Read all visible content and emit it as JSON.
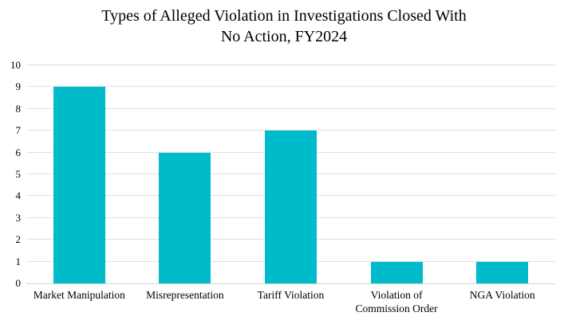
{
  "chart_data": {
    "type": "bar",
    "title": "Types of Alleged Violation in Investigations Closed With No Action, FY2024",
    "title_lines": [
      "Types of Alleged Violation in Investigations Closed With",
      "No Action, FY2024"
    ],
    "categories": [
      "Market Manipulation",
      "Misrepresentation",
      "Tariff Violation",
      "Violation of Commission Order",
      "NGA Violation"
    ],
    "values": [
      9,
      6,
      7,
      1,
      1
    ],
    "xlabel": "",
    "ylabel": "",
    "ylim": [
      0,
      10
    ],
    "yticks": [
      0,
      1,
      2,
      3,
      4,
      5,
      6,
      7,
      8,
      9,
      10
    ],
    "grid": "horizontal",
    "legend": "none",
    "colors": {
      "bar": "#00BCCB",
      "gridline": "#E0E0E0",
      "axis_line": "#D0D0D0",
      "text": "#000000",
      "background": "#FFFFFF"
    }
  }
}
